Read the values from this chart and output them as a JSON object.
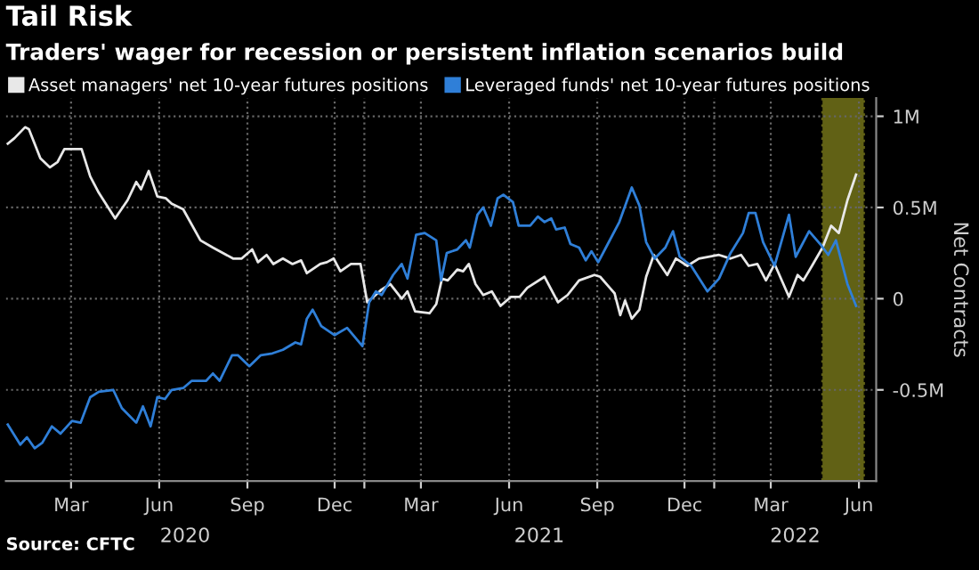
{
  "chart_data": {
    "type": "line",
    "title": "Tail Risk",
    "subtitle": "Traders' wager for recession or persistent inflation scenarios build",
    "ylabel": "Net Contracts",
    "series": [
      {
        "name": "Asset managers' net 10-year futures positions",
        "color": "#e8e8e8",
        "x": [
          "2019-12-26",
          "2020-01-02",
          "2020-01-13",
          "2020-01-17",
          "2020-01-29",
          "2020-02-08",
          "2020-02-16",
          "2020-02-23",
          "2020-03-12",
          "2020-03-21",
          "2020-03-30",
          "2020-04-16",
          "2020-04-29",
          "2020-05-08",
          "2020-05-13",
          "2020-05-21",
          "2020-05-30",
          "2020-06-08",
          "2020-06-14",
          "2020-06-26",
          "2020-07-14",
          "2020-07-27",
          "2020-08-17",
          "2020-08-26",
          "2020-09-06",
          "2020-09-12",
          "2020-09-21",
          "2020-09-28",
          "2020-10-08",
          "2020-10-18",
          "2020-10-27",
          "2020-11-02",
          "2020-11-16",
          "2020-11-23",
          "2020-11-30",
          "2020-12-07",
          "2020-12-18",
          "2020-12-28",
          "2021-01-04",
          "2021-01-19",
          "2021-01-28",
          "2021-02-09",
          "2021-02-15",
          "2021-02-23",
          "2021-03-10",
          "2021-03-17",
          "2021-03-23",
          "2021-03-29",
          "2021-04-08",
          "2021-04-14",
          "2021-04-20",
          "2021-04-27",
          "2021-05-05",
          "2021-05-14",
          "2021-05-23",
          "2021-06-03",
          "2021-06-12",
          "2021-06-20",
          "2021-07-08",
          "2021-07-22",
          "2021-08-01",
          "2021-08-13",
          "2021-08-29",
          "2021-09-04",
          "2021-09-14",
          "2021-09-19",
          "2021-09-25",
          "2021-09-30",
          "2021-10-07",
          "2021-10-15",
          "2021-10-22",
          "2021-10-30",
          "2021-11-13",
          "2021-11-22",
          "2021-12-04",
          "2021-12-16",
          "2022-01-06",
          "2022-01-18",
          "2022-01-29",
          "2022-02-06",
          "2022-02-15",
          "2022-02-24",
          "2022-03-05",
          "2022-03-20",
          "2022-03-29",
          "2022-04-04",
          "2022-04-13",
          "2022-04-24",
          "2022-05-03",
          "2022-05-11",
          "2022-05-20",
          "2022-05-29"
        ],
        "values": [
          0.85,
          0.88,
          0.94,
          0.93,
          0.77,
          0.72,
          0.75,
          0.82,
          0.82,
          0.67,
          0.58,
          0.44,
          0.54,
          0.64,
          0.6,
          0.7,
          0.56,
          0.55,
          0.52,
          0.49,
          0.32,
          0.28,
          0.22,
          0.22,
          0.27,
          0.2,
          0.24,
          0.19,
          0.22,
          0.19,
          0.21,
          0.14,
          0.19,
          0.2,
          0.22,
          0.15,
          0.19,
          0.19,
          -0.02,
          0.05,
          0.08,
          0.0,
          0.04,
          -0.07,
          -0.08,
          -0.03,
          0.11,
          0.1,
          0.16,
          0.15,
          0.19,
          0.08,
          0.02,
          0.04,
          -0.04,
          0.01,
          0.01,
          0.06,
          0.12,
          -0.02,
          0.02,
          0.1,
          0.13,
          0.12,
          0.06,
          0.03,
          -0.09,
          -0.01,
          -0.11,
          -0.06,
          0.12,
          0.24,
          0.13,
          0.22,
          0.18,
          0.22,
          0.24,
          0.22,
          0.24,
          0.18,
          0.19,
          0.1,
          0.19,
          0.01,
          0.13,
          0.1,
          0.18,
          0.28,
          0.4,
          0.36,
          0.54,
          0.68
        ]
      },
      {
        "name": "Leveraged funds' net 10-year futures positions",
        "color": "#2f7fd8",
        "x": [
          "2019-12-26",
          "2020-01-08",
          "2020-01-15",
          "2020-01-23",
          "2020-01-31",
          "2020-02-10",
          "2020-02-19",
          "2020-03-02",
          "2020-03-11",
          "2020-03-21",
          "2020-03-30",
          "2020-04-14",
          "2020-04-23",
          "2020-05-08",
          "2020-05-15",
          "2020-05-23",
          "2020-05-30",
          "2020-06-07",
          "2020-06-14",
          "2020-06-26",
          "2020-07-05",
          "2020-07-20",
          "2020-07-27",
          "2020-08-03",
          "2020-08-16",
          "2020-08-22",
          "2020-09-03",
          "2020-09-15",
          "2020-09-27",
          "2020-10-08",
          "2020-10-21",
          "2020-10-27",
          "2020-11-02",
          "2020-11-08",
          "2020-11-17",
          "2020-12-01",
          "2020-12-14",
          "2020-12-30",
          "2021-01-06",
          "2021-01-13",
          "2021-01-19",
          "2021-01-31",
          "2021-02-09",
          "2021-02-15",
          "2021-02-24",
          "2021-03-05",
          "2021-03-17",
          "2021-03-22",
          "2021-03-28",
          "2021-04-08",
          "2021-04-17",
          "2021-04-21",
          "2021-04-29",
          "2021-05-05",
          "2021-05-13",
          "2021-05-20",
          "2021-05-26",
          "2021-06-05",
          "2021-06-11",
          "2021-06-23",
          "2021-07-01",
          "2021-07-08",
          "2021-07-15",
          "2021-07-20",
          "2021-07-29",
          "2021-08-04",
          "2021-08-13",
          "2021-08-20",
          "2021-08-26",
          "2021-09-02",
          "2021-09-10",
          "2021-09-24",
          "2021-10-07",
          "2021-10-15",
          "2021-10-22",
          "2021-10-31",
          "2021-11-11",
          "2021-11-19",
          "2021-11-26",
          "2021-12-08",
          "2021-12-25",
          "2022-01-06",
          "2022-01-18",
          "2022-01-31",
          "2022-02-06",
          "2022-02-13",
          "2022-02-21",
          "2022-03-05",
          "2022-03-20",
          "2022-03-27",
          "2022-04-10",
          "2022-04-23",
          "2022-04-30",
          "2022-05-08",
          "2022-05-20",
          "2022-05-29"
        ],
        "values": [
          -0.69,
          -0.8,
          -0.76,
          -0.82,
          -0.79,
          -0.7,
          -0.74,
          -0.67,
          -0.68,
          -0.54,
          -0.51,
          -0.5,
          -0.6,
          -0.68,
          -0.59,
          -0.7,
          -0.54,
          -0.55,
          -0.5,
          -0.49,
          -0.45,
          -0.45,
          -0.41,
          -0.45,
          -0.31,
          -0.31,
          -0.37,
          -0.31,
          -0.3,
          -0.28,
          -0.24,
          -0.25,
          -0.11,
          -0.06,
          -0.15,
          -0.2,
          -0.16,
          -0.26,
          -0.02,
          0.04,
          0.02,
          0.13,
          0.19,
          0.11,
          0.35,
          0.36,
          0.32,
          0.1,
          0.25,
          0.27,
          0.32,
          0.28,
          0.46,
          0.5,
          0.4,
          0.55,
          0.57,
          0.53,
          0.4,
          0.4,
          0.45,
          0.42,
          0.44,
          0.38,
          0.39,
          0.3,
          0.28,
          0.21,
          0.26,
          0.2,
          0.28,
          0.42,
          0.61,
          0.51,
          0.31,
          0.22,
          0.28,
          0.37,
          0.23,
          0.18,
          0.04,
          0.11,
          0.25,
          0.36,
          0.47,
          0.47,
          0.31,
          0.18,
          0.46,
          0.23,
          0.37,
          0.29,
          0.24,
          0.32,
          0.08,
          -0.04
        ]
      }
    ],
    "xlim": [
      "2019-12-24",
      "2022-06-19"
    ],
    "xticks": [
      {
        "value": "2020-03-01",
        "label": "Mar"
      },
      {
        "value": "2020-06-01",
        "label": "Jun"
      },
      {
        "value": "2020-09-01",
        "label": "Sep"
      },
      {
        "value": "2020-12-01",
        "label": "Dec"
      },
      {
        "value": "2021-01-01",
        "label": null
      },
      {
        "value": "2021-03-01",
        "label": "Mar"
      },
      {
        "value": "2021-06-01",
        "label": "Jun"
      },
      {
        "value": "2021-09-01",
        "label": "Sep"
      },
      {
        "value": "2021-12-01",
        "label": "Dec"
      },
      {
        "value": "2022-01-01",
        "label": null
      },
      {
        "value": "2022-03-01",
        "label": "Mar"
      },
      {
        "value": "2022-06-01",
        "label": "Jun"
      }
    ],
    "ylim": [
      -1.0,
      1.1
    ],
    "yticks": [
      {
        "value": -0.5,
        "label": "-0.5M"
      },
      {
        "value": 0,
        "label": "0"
      },
      {
        "value": 0.5,
        "label": "0.5M"
      },
      {
        "value": 1,
        "label": "1M"
      }
    ],
    "bands": [
      {
        "axis": "x",
        "from": "2022-04-24",
        "to": "2022-06-06",
        "color": "#d8d830"
      }
    ],
    "grid": true,
    "legend": "top left",
    "line_style": "solid",
    "marker": "none",
    "annotations": [
      "2020",
      "2021",
      "2022",
      "Source: CFTC"
    ]
  }
}
